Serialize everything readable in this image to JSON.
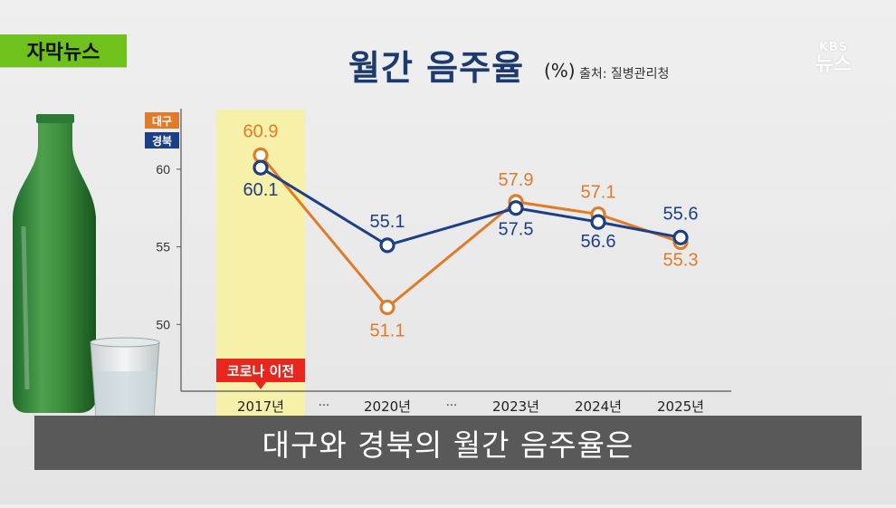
{
  "badge": "자막뉴스",
  "logo": {
    "line1": "KBS",
    "line2": "뉴스"
  },
  "header": {
    "title": "월간 음주율",
    "unit": "(%)",
    "source": "출처: 질병관리청"
  },
  "subtitle": "대구와 경북의 월간 음주율은",
  "colors": {
    "daegu": "#e07b2a",
    "gyeongbuk": "#1d3f85",
    "highlight": "#f6f0a8",
    "badge": "#6fc21c",
    "annotation": "#e8261d"
  },
  "chart_data": {
    "type": "line",
    "categories": [
      "2017년",
      "2020년",
      "2023년",
      "2024년",
      "2025년"
    ],
    "separators": [
      "···",
      "···"
    ],
    "series": [
      {
        "name": "대구",
        "values": [
          60.9,
          51.1,
          57.9,
          57.1,
          55.3
        ]
      },
      {
        "name": "경북",
        "values": [
          60.1,
          55.1,
          57.5,
          56.6,
          55.6
        ]
      }
    ],
    "y_ticks": [
      50,
      55,
      60
    ],
    "ylim": [
      45.7,
      63.9
    ],
    "highlight_category": "2017년",
    "annotation": "코로나 이전",
    "legend": "top-left"
  }
}
